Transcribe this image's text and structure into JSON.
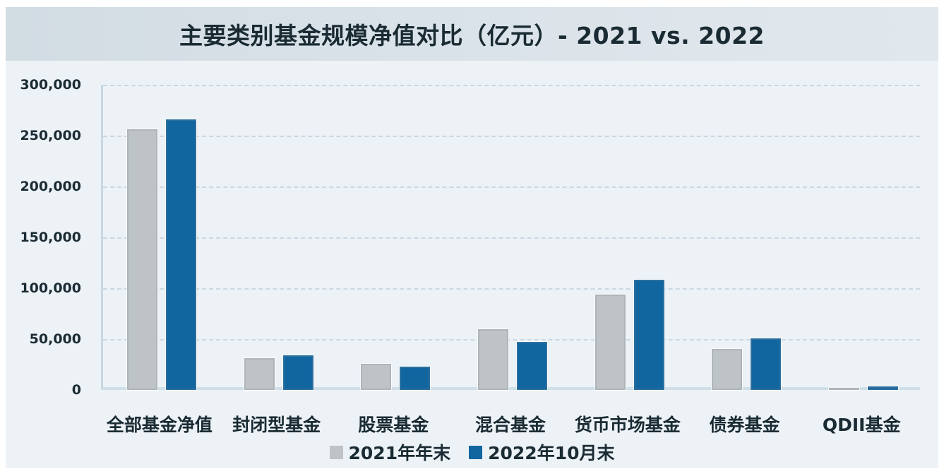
{
  "header": {
    "title": "主要类别基金规模净值对比（亿元）- 2021 vs. 2022",
    "background": "#d7dfe6",
    "text_color": "#1a2b33"
  },
  "chart_data": {
    "type": "bar",
    "title": "主要类别基金规模净值对比（亿元）- 2021 vs. 2022",
    "unit": "亿元",
    "categories": [
      "全部基金净值",
      "封闭型基金",
      "股票基金",
      "混合基金",
      "货币市场基金",
      "债券基金",
      "QDII基金"
    ],
    "series": [
      {
        "name": "2021年年末",
        "key": "2021",
        "color": "#bdc3c6",
        "edge_color": "#aeb5b9",
        "values": [
          256000,
          31000,
          25500,
          60000,
          94000,
          40500,
          2300
        ]
      },
      {
        "name": "2022年10月末",
        "key": "2022",
        "color": "#1166a0",
        "edge_color": "#2d6f9e",
        "values": [
          266000,
          34000,
          23000,
          47000,
          108500,
          51000,
          3400
        ]
      }
    ],
    "xlabel": "",
    "ylabel": "",
    "ylim": [
      0,
      300000
    ],
    "ytick_interval": 50000,
    "yticks": [
      "300,000",
      "250,000",
      "200,000",
      "150,000",
      "100,000",
      "50,000",
      "0"
    ],
    "grid": "horizontal-dashed",
    "legend_position": "bottom-center"
  },
  "colors": {
    "page_background": "#ffffff",
    "chart_background": "#edf2f7",
    "gridline": "#cad8e2",
    "axis_line": "#c6d8e2",
    "label_text": "#1a2b33"
  }
}
